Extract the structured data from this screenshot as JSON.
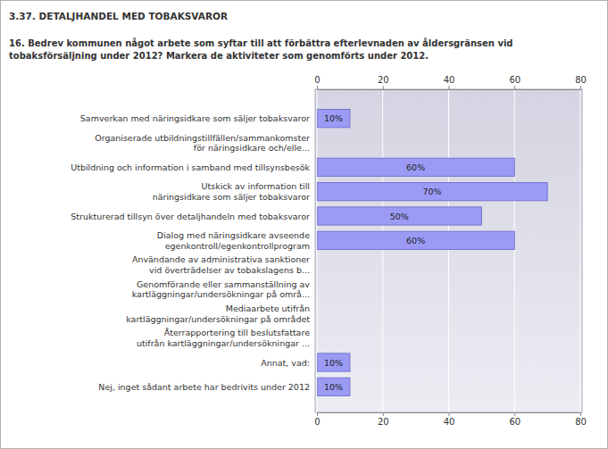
{
  "chart_data": {
    "type": "bar",
    "orientation": "horizontal",
    "title": "3.37. DETALJHANDEL MED TOBAKSVAROR",
    "subtitle": "16. Bedrev kommunen något arbete som syftar till att förbättra efterlevnaden av åldersgränsen vid\ntobaksförsäljning under 2012? Markera de aktiviteter som genomförts under 2012.",
    "categories": [
      "Samverkan med näringsidkare som säljer tobaksvaror",
      "Organiserade utbildningstillfällen/sammankomster\nför näringsidkare och/elle...",
      "Utbildning och information i samband med tillsynsbesök",
      "Utskick av information till\nnäringsidkare som säljer tobaksvaror",
      "Strukturerad tillsyn över detaljhandeln med tobaksvaror",
      "Dialog med näringsidkare avseende\negenkontroll/egenkontrollprogram",
      "Användande av administrativa sanktioner\nvid överträdelser av tobakslagens b...",
      "Genomförande eller sammanställning av\nkartläggningar/undersökningar på områ...",
      "Mediaarbete utifrån\nkartläggningar/undersökningar på området",
      "Återrapportering till beslutsfattare\nutifrån kartläggningar/undersökningar ...",
      "Annat, vad:",
      "Nej, inget sådant arbete har bedrivits under 2012"
    ],
    "values": [
      10,
      0,
      60,
      70,
      50,
      60,
      0,
      0,
      0,
      0,
      10,
      10
    ],
    "value_labels": [
      "10%",
      null,
      "60%",
      "70%",
      "50%",
      "60%",
      null,
      null,
      null,
      null,
      "10%",
      "10%"
    ],
    "color": "#9b9bf5",
    "xlim": [
      0,
      80
    ],
    "xticks": [
      0,
      20,
      40,
      60,
      80
    ],
    "grid": true,
    "data_labels": true
  }
}
